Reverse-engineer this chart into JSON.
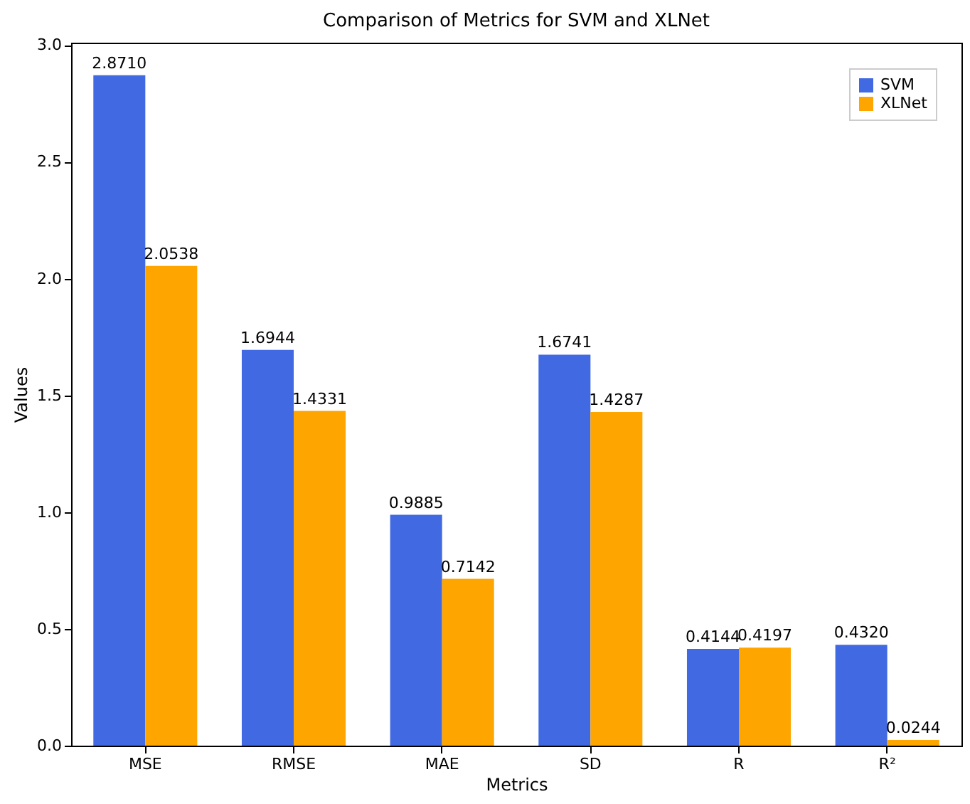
{
  "chart_data": {
    "type": "bar",
    "title": "Comparison of Metrics for SVM and XLNet",
    "xlabel": "Metrics",
    "ylabel": "Values",
    "categories": [
      "MSE",
      "RMSE",
      "MAE",
      "SD",
      "R",
      "R²"
    ],
    "series": [
      {
        "name": "SVM",
        "color": "#4169e1",
        "values": [
          2.871,
          1.6944,
          0.9885,
          1.6741,
          0.4144,
          0.432
        ],
        "value_labels": [
          "2.8710",
          "1.6944",
          "0.9885",
          "1.6741",
          "0.4144",
          "0.4320"
        ]
      },
      {
        "name": "XLNet",
        "color": "#ffa500",
        "values": [
          2.0538,
          1.4331,
          0.7142,
          1.4287,
          0.4197,
          0.0244
        ],
        "value_labels": [
          "2.0538",
          "1.4331",
          "0.7142",
          "1.4287",
          "0.4197",
          "0.0244"
        ]
      }
    ],
    "ylim": [
      0,
      3.01
    ],
    "yticks": [
      {
        "value": 0,
        "label": "0.0"
      },
      0.5,
      {
        "value": 1,
        "label": "1.0"
      },
      1.5,
      {
        "value": 2,
        "label": "2.0"
      },
      2.5,
      {
        "value": 3,
        "label": "3.0"
      }
    ],
    "grid": false,
    "legend": "top right"
  }
}
